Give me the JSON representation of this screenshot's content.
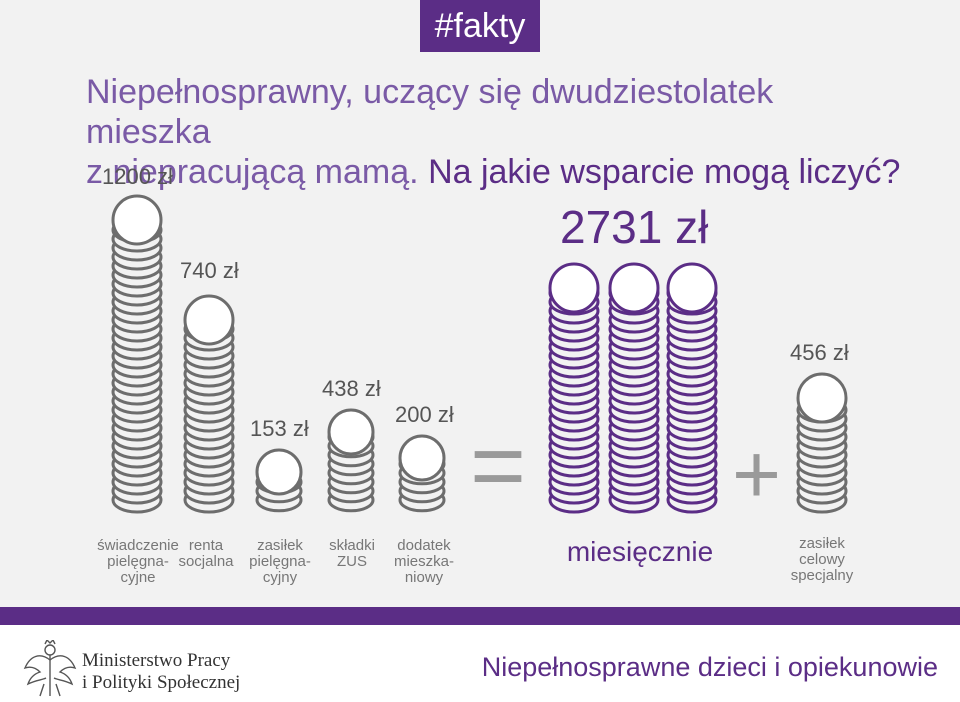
{
  "tag": "#fakty",
  "headline": {
    "line1": "Niepełnosprawny, uczący się dwudziestolatek mieszka",
    "line2_light": "z niepracującą mamą.",
    "line2_strong": "Na jakie wsparcie mogą liczyć?"
  },
  "items": [
    {
      "amount": "1200 zł",
      "value": 1200,
      "label1": "świadczenie",
      "label2": "pielęgna-",
      "label3": "cyjne"
    },
    {
      "amount": "740 zł",
      "value": 740,
      "label1": "renta",
      "label2": "socjalna",
      "label3": ""
    },
    {
      "amount": "153 zł",
      "value": 153,
      "label1": "zasiłek",
      "label2": "pielęgna-",
      "label3": "cyjny"
    },
    {
      "amount": "438 zł",
      "value": 438,
      "label1": "składki",
      "label2": "ZUS",
      "label3": ""
    },
    {
      "amount": "200 zł",
      "value": 200,
      "label1": "dodatek",
      "label2": "mieszka-",
      "label3": "niowy"
    }
  ],
  "total": {
    "amount": "2731 zł",
    "value": 2731,
    "label": "miesięcznie"
  },
  "extra": {
    "amount": "456 zł",
    "value": 456,
    "label1": "zasiłek",
    "label2": "celowy",
    "label3": "specjalny"
  },
  "operators": {
    "equals": "=",
    "plus": "+"
  },
  "footer": {
    "ministry_line1": "Ministerstwo Pracy",
    "ministry_line2": "i Polityki Społecznej",
    "title": "Niepełnosprawne dzieci i opiekunowie"
  },
  "colors": {
    "purple": "#5b2d86",
    "coin_gray": "#6d6d6d",
    "background": "#f2f2f2"
  },
  "icons": {
    "emblem": "polish-eagle-icon",
    "coin": "coin-icon"
  }
}
